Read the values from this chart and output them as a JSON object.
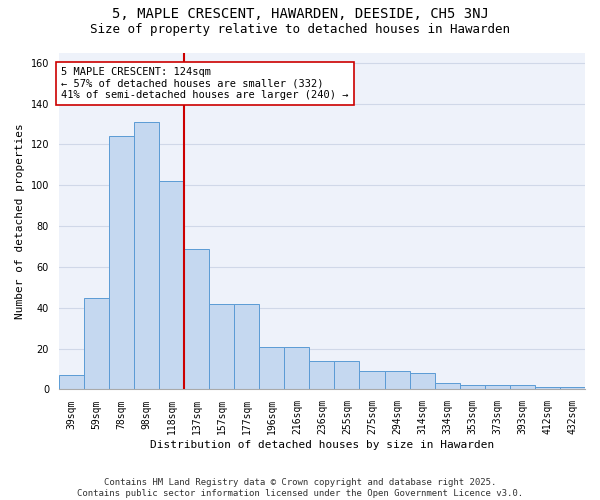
{
  "title": "5, MAPLE CRESCENT, HAWARDEN, DEESIDE, CH5 3NJ",
  "subtitle": "Size of property relative to detached houses in Hawarden",
  "xlabel": "Distribution of detached houses by size in Hawarden",
  "ylabel": "Number of detached properties",
  "categories": [
    "39sqm",
    "59sqm",
    "78sqm",
    "98sqm",
    "118sqm",
    "137sqm",
    "157sqm",
    "177sqm",
    "196sqm",
    "216sqm",
    "236sqm",
    "255sqm",
    "275sqm",
    "294sqm",
    "314sqm",
    "334sqm",
    "353sqm",
    "373sqm",
    "393sqm",
    "412sqm",
    "432sqm"
  ],
  "bar_values_plot": [
    7,
    45,
    124,
    131,
    102,
    69,
    42,
    42,
    21,
    21,
    14,
    14,
    9,
    9,
    8,
    3,
    2,
    2,
    2,
    1,
    1
  ],
  "bar_color": "#c5d8f0",
  "bar_edge_color": "#5b9bd5",
  "vline_x": 5,
  "vline_color": "#cc0000",
  "annotation_text": "5 MAPLE CRESCENT: 124sqm\n← 57% of detached houses are smaller (332)\n41% of semi-detached houses are larger (240) →",
  "annotation_box_color": "#ffffff",
  "annotation_box_edge": "#cc0000",
  "ylim": [
    0,
    165
  ],
  "yticks": [
    0,
    20,
    40,
    60,
    80,
    100,
    120,
    140,
    160
  ],
  "grid_color": "#d0d8e8",
  "bg_color": "#eef2fa",
  "footer": "Contains HM Land Registry data © Crown copyright and database right 2025.\nContains public sector information licensed under the Open Government Licence v3.0.",
  "title_fontsize": 10,
  "subtitle_fontsize": 9,
  "xlabel_fontsize": 8,
  "ylabel_fontsize": 8,
  "tick_fontsize": 7,
  "annotation_fontsize": 7.5,
  "footer_fontsize": 6.5
}
